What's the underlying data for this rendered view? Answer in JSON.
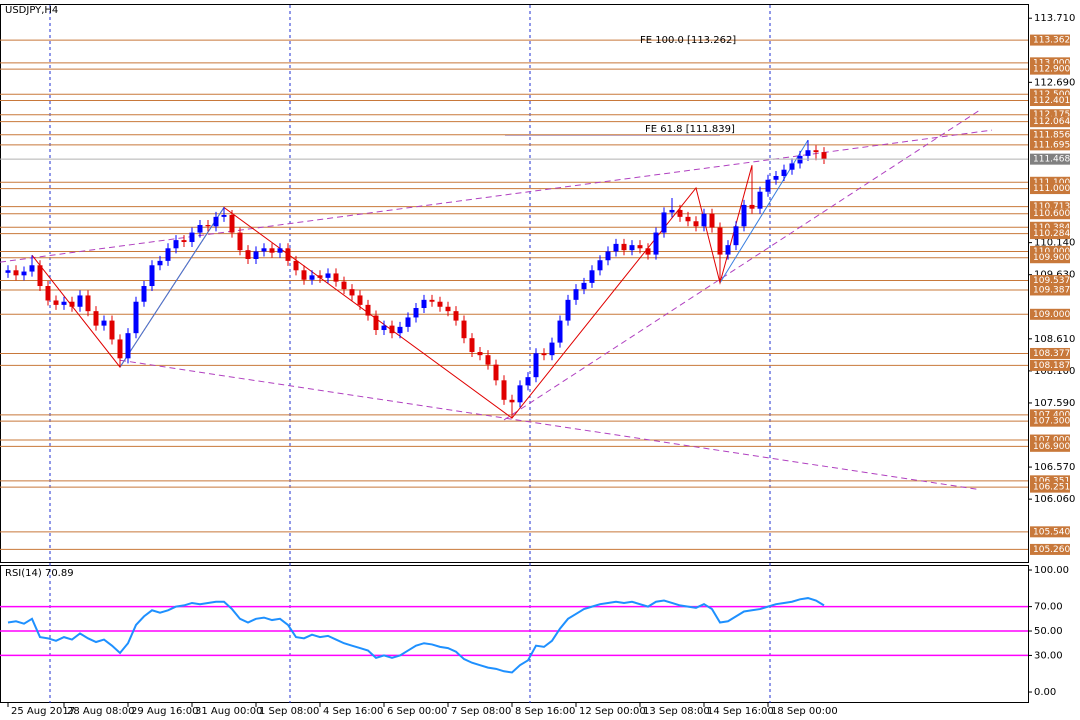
{
  "chart_data": [
    {
      "type": "candlestick",
      "title": "USDJPY,H4",
      "ohlc": [
        [
          109.66,
          109.78,
          109.58,
          109.7
        ],
        [
          109.7,
          109.78,
          109.54,
          109.62
        ],
        [
          109.62,
          109.76,
          109.54,
          109.68
        ],
        [
          109.68,
          109.94,
          109.6,
          109.78
        ],
        [
          109.78,
          109.86,
          109.37,
          109.45
        ],
        [
          109.45,
          109.53,
          109.14,
          109.22
        ],
        [
          109.22,
          109.3,
          109.07,
          109.15
        ],
        [
          109.15,
          109.28,
          109.07,
          109.2
        ],
        [
          109.2,
          109.28,
          109.04,
          109.12
        ],
        [
          109.12,
          109.38,
          109.04,
          109.3
        ],
        [
          109.3,
          109.38,
          108.97,
          109.05
        ],
        [
          109.05,
          109.13,
          108.74,
          108.82
        ],
        [
          108.82,
          108.98,
          108.74,
          108.9
        ],
        [
          108.9,
          108.98,
          108.52,
          108.6
        ],
        [
          108.6,
          108.68,
          108.16,
          108.3
        ],
        [
          108.3,
          108.78,
          108.22,
          108.7
        ],
        [
          108.7,
          109.28,
          108.62,
          109.2
        ],
        [
          109.2,
          109.53,
          109.12,
          109.45
        ],
        [
          109.45,
          109.86,
          109.37,
          109.78
        ],
        [
          109.78,
          109.93,
          109.7,
          109.85
        ],
        [
          109.85,
          110.13,
          109.77,
          110.05
        ],
        [
          110.05,
          110.26,
          109.97,
          110.18
        ],
        [
          110.18,
          110.26,
          110.07,
          110.15
        ],
        [
          110.15,
          110.38,
          110.07,
          110.3
        ],
        [
          110.3,
          110.5,
          110.22,
          110.42
        ],
        [
          110.42,
          110.5,
          110.32,
          110.4
        ],
        [
          110.4,
          110.63,
          110.32,
          110.55
        ],
        [
          110.55,
          110.7,
          110.47,
          110.58
        ],
        [
          110.58,
          110.66,
          110.22,
          110.3
        ],
        [
          110.3,
          110.38,
          109.94,
          110.02
        ],
        [
          110.02,
          110.1,
          109.8,
          109.88
        ],
        [
          109.88,
          110.08,
          109.8,
          110.0
        ],
        [
          110.0,
          110.13,
          109.92,
          110.05
        ],
        [
          110.05,
          110.13,
          109.9,
          109.98
        ],
        [
          109.98,
          110.13,
          109.9,
          110.05
        ],
        [
          110.05,
          110.13,
          109.77,
          109.85
        ],
        [
          109.85,
          109.93,
          109.62,
          109.7
        ],
        [
          109.7,
          109.78,
          109.47,
          109.55
        ],
        [
          109.55,
          109.7,
          109.47,
          109.62
        ],
        [
          109.62,
          109.7,
          109.5,
          109.58
        ],
        [
          109.58,
          109.73,
          109.5,
          109.65
        ],
        [
          109.65,
          109.73,
          109.44,
          109.52
        ],
        [
          109.52,
          109.6,
          109.32,
          109.4
        ],
        [
          109.4,
          109.48,
          109.22,
          109.3
        ],
        [
          109.3,
          109.38,
          109.07,
          109.15
        ],
        [
          109.15,
          109.23,
          108.9,
          108.98
        ],
        [
          108.98,
          109.06,
          108.67,
          108.75
        ],
        [
          108.75,
          108.9,
          108.67,
          108.82
        ],
        [
          108.82,
          108.9,
          108.62,
          108.7
        ],
        [
          108.7,
          108.88,
          108.62,
          108.8
        ],
        [
          108.8,
          109.03,
          108.72,
          108.95
        ],
        [
          108.95,
          109.18,
          108.87,
          109.1
        ],
        [
          109.1,
          109.31,
          109.02,
          109.23
        ],
        [
          109.23,
          109.31,
          109.12,
          109.2
        ],
        [
          109.2,
          109.28,
          109.04,
          109.12
        ],
        [
          109.12,
          109.2,
          108.97,
          109.05
        ],
        [
          109.05,
          109.13,
          108.82,
          108.9
        ],
        [
          108.9,
          108.98,
          108.54,
          108.62
        ],
        [
          108.62,
          108.7,
          108.32,
          108.4
        ],
        [
          108.4,
          108.48,
          108.27,
          108.35
        ],
        [
          108.35,
          108.43,
          108.12,
          108.2
        ],
        [
          108.2,
          108.28,
          107.87,
          107.95
        ],
        [
          107.95,
          108.03,
          107.56,
          107.64
        ],
        [
          107.64,
          107.72,
          107.35,
          107.6
        ],
        [
          107.6,
          107.95,
          107.52,
          107.87
        ],
        [
          107.87,
          108.08,
          107.79,
          108.0
        ],
        [
          108.0,
          108.46,
          107.92,
          108.38
        ],
        [
          108.38,
          108.46,
          108.27,
          108.35
        ],
        [
          108.35,
          108.63,
          108.27,
          108.55
        ],
        [
          108.55,
          108.98,
          108.47,
          108.9
        ],
        [
          108.9,
          109.31,
          108.82,
          109.23
        ],
        [
          109.23,
          109.48,
          109.15,
          109.4
        ],
        [
          109.4,
          109.58,
          109.32,
          109.5
        ],
        [
          109.5,
          109.78,
          109.42,
          109.7
        ],
        [
          109.7,
          109.94,
          109.62,
          109.86
        ],
        [
          109.86,
          110.08,
          109.78,
          110.0
        ],
        [
          110.0,
          110.2,
          109.92,
          110.12
        ],
        [
          110.12,
          110.2,
          109.94,
          110.02
        ],
        [
          110.02,
          110.18,
          109.94,
          110.1
        ],
        [
          110.1,
          110.18,
          109.97,
          110.05
        ],
        [
          110.05,
          110.13,
          109.87,
          109.95
        ],
        [
          109.95,
          110.38,
          109.87,
          110.3
        ],
        [
          110.3,
          110.7,
          110.22,
          110.62
        ],
        [
          110.62,
          110.85,
          110.54,
          110.66
        ],
        [
          110.66,
          110.74,
          110.47,
          110.55
        ],
        [
          110.55,
          110.63,
          110.4,
          110.48
        ],
        [
          110.48,
          110.56,
          110.32,
          110.4
        ],
        [
          110.4,
          110.68,
          110.32,
          110.6
        ],
        [
          110.6,
          110.68,
          110.3,
          110.38
        ],
        [
          110.38,
          110.46,
          109.5,
          109.95
        ],
        [
          109.95,
          110.18,
          109.87,
          110.1
        ],
        [
          110.1,
          110.48,
          110.02,
          110.4
        ],
        [
          110.4,
          110.82,
          110.32,
          110.74
        ],
        [
          110.74,
          111.37,
          110.6,
          110.68
        ],
        [
          110.68,
          111.03,
          110.6,
          110.95
        ],
        [
          110.95,
          111.22,
          110.87,
          111.14
        ],
        [
          111.14,
          111.28,
          111.06,
          111.2
        ],
        [
          111.2,
          111.38,
          111.12,
          111.3
        ],
        [
          111.3,
          111.48,
          111.22,
          111.4
        ],
        [
          111.4,
          111.6,
          111.32,
          111.52
        ],
        [
          111.52,
          111.77,
          111.44,
          111.61
        ],
        [
          111.61,
          111.69,
          111.45,
          111.58
        ],
        [
          111.58,
          111.66,
          111.39,
          111.47
        ]
      ],
      "up_color": "#0000ff",
      "down_color": "#e00000",
      "xlim": [
        -1,
        127.5
      ],
      "ylim": [
        105.06,
        113.92
      ],
      "yticks": [
        {
          "value": 113.71,
          "label": "113.710"
        },
        {
          "value": 112.69,
          "label": "112.690"
        },
        {
          "value": 110.14,
          "label": "110.140"
        },
        {
          "value": 109.63,
          "label": "109.630"
        },
        {
          "value": 108.61,
          "label": "108.610"
        },
        {
          "value": 108.1,
          "label": "108.100"
        },
        {
          "value": 107.59,
          "label": "107.590"
        },
        {
          "value": 106.57,
          "label": "106.570"
        },
        {
          "value": 106.06,
          "label": "106.060"
        }
      ],
      "xticks": [
        {
          "value": 0,
          "label": "25 Aug 2017"
        },
        {
          "value": 7,
          "label": "28 Aug 08:00"
        },
        {
          "value": 15,
          "label": "29 Aug 16:00"
        },
        {
          "value": 23,
          "label": "31 Aug 00:00"
        },
        {
          "value": 31,
          "label": "1 Sep 08:00"
        },
        {
          "value": 39,
          "label": "4 Sep 16:00"
        },
        {
          "value": 47,
          "label": "6 Sep 00:00"
        },
        {
          "value": 55,
          "label": "7 Sep 08:00"
        },
        {
          "value": 63,
          "label": "8 Sep 16:00"
        },
        {
          "value": 71,
          "label": "12 Sep 00:00"
        },
        {
          "value": 79,
          "label": "13 Sep 08:00"
        },
        {
          "value": 87,
          "label": "14 Sep 16:00"
        },
        {
          "value": 95,
          "label": "18 Sep 00:00"
        }
      ],
      "level_color": "#c8783a",
      "levels": [
        {
          "value": 113.362,
          "label": "113.362"
        },
        {
          "value": 113.0,
          "label": "113.000"
        },
        {
          "value": 112.9,
          "label": "112.900"
        },
        {
          "value": 112.5,
          "label": "112.500"
        },
        {
          "value": 112.401,
          "label": "112.401"
        },
        {
          "value": 112.175,
          "label": "112.175"
        },
        {
          "value": 112.064,
          "label": "112.064"
        },
        {
          "value": 111.856,
          "label": "111.856"
        },
        {
          "value": 111.695,
          "label": "111.695"
        },
        {
          "value": 111.1,
          "label": "111.100"
        },
        {
          "value": 111.0,
          "label": "111.000"
        },
        {
          "value": 110.713,
          "label": "110.713"
        },
        {
          "value": 110.6,
          "label": "110.600"
        },
        {
          "value": 110.384,
          "label": "110.384"
        },
        {
          "value": 110.284,
          "label": "110.284"
        },
        {
          "value": 110.0,
          "label": "110.000"
        },
        {
          "value": 109.9,
          "label": "109.900"
        },
        {
          "value": 109.537,
          "label": "109.537"
        },
        {
          "value": 109.387,
          "label": "109.387"
        },
        {
          "value": 109.0,
          "label": "109.000"
        },
        {
          "value": 108.377,
          "label": "108.377"
        },
        {
          "value": 108.187,
          "label": "108.187"
        },
        {
          "value": 107.4,
          "label": "107.400"
        },
        {
          "value": 107.3,
          "label": "107.300"
        },
        {
          "value": 107.0,
          "label": "107.000"
        },
        {
          "value": 106.9,
          "label": "106.900"
        },
        {
          "value": 106.351,
          "label": "106.351"
        },
        {
          "value": 106.251,
          "label": "106.251"
        },
        {
          "value": 105.54,
          "label": "105.540"
        },
        {
          "value": 105.26,
          "label": "105.260"
        }
      ],
      "current": {
        "value": 111.468,
        "label": "111.468"
      },
      "trendlines": [
        {
          "color": "#b040c0",
          "x": [
            -1,
            123
          ],
          "y": [
            109.83,
            111.93
          ]
        },
        {
          "color": "#b040c0",
          "x": [
            14,
            121.5
          ],
          "y": [
            108.27,
            106.21
          ]
        },
        {
          "color": "#b040c0",
          "x": [
            62,
            121.5
          ],
          "y": [
            107.32,
            112.25
          ]
        },
        {
          "color": "#e00000",
          "x": [
            3,
            14,
            27,
            63,
            86,
            89,
            93
          ],
          "y": [
            109.94,
            108.16,
            110.7,
            107.35,
            111.01,
            109.5,
            111.37
          ]
        },
        {
          "color": "#3a7fe0",
          "x": [
            14,
            27
          ],
          "y": [
            108.16,
            110.7
          ]
        },
        {
          "color": "#3a7fe0",
          "x": [
            89,
            100
          ],
          "y": [
            109.5,
            111.77
          ]
        }
      ],
      "annotations": [
        "FE 100.0 [113.262]",
        "FE 61.8 [111.839]"
      ]
    },
    {
      "type": "line",
      "title": "RSI(14) 70.89",
      "color": "#1e90ff",
      "values": [
        57,
        58,
        56,
        60,
        45,
        44,
        42,
        45,
        43,
        48,
        44,
        41,
        43,
        38,
        32,
        40,
        55,
        62,
        67,
        65,
        67,
        70,
        71,
        73,
        72,
        73,
        74,
        74,
        68,
        60,
        57,
        60,
        61,
        59,
        60,
        55,
        45,
        44,
        47,
        45,
        46,
        43,
        40,
        38,
        36,
        34,
        28,
        30,
        28,
        30,
        34,
        38,
        40,
        39,
        37,
        36,
        33,
        27,
        24,
        22,
        20,
        19,
        17,
        16,
        22,
        26,
        38,
        37,
        42,
        52,
        60,
        64,
        68,
        70,
        72,
        73,
        74,
        73,
        74,
        72,
        70,
        74,
        75,
        73,
        71,
        70,
        69,
        72,
        68,
        57,
        58,
        62,
        66,
        67,
        68,
        70,
        72,
        73,
        74,
        76,
        77,
        75,
        71
      ],
      "xlim": [
        -1,
        127.5
      ],
      "ylim": [
        -9,
        103.3
      ],
      "yticks": [
        {
          "value": 100,
          "label": "100.00"
        },
        {
          "value": 70,
          "label": "70.00"
        },
        {
          "value": 50,
          "label": "50.00"
        },
        {
          "value": 30,
          "label": "30.00"
        },
        {
          "value": 0,
          "label": "0.00"
        }
      ],
      "levels": [
        70,
        50,
        30
      ],
      "level_color": "#ff00ff"
    }
  ]
}
